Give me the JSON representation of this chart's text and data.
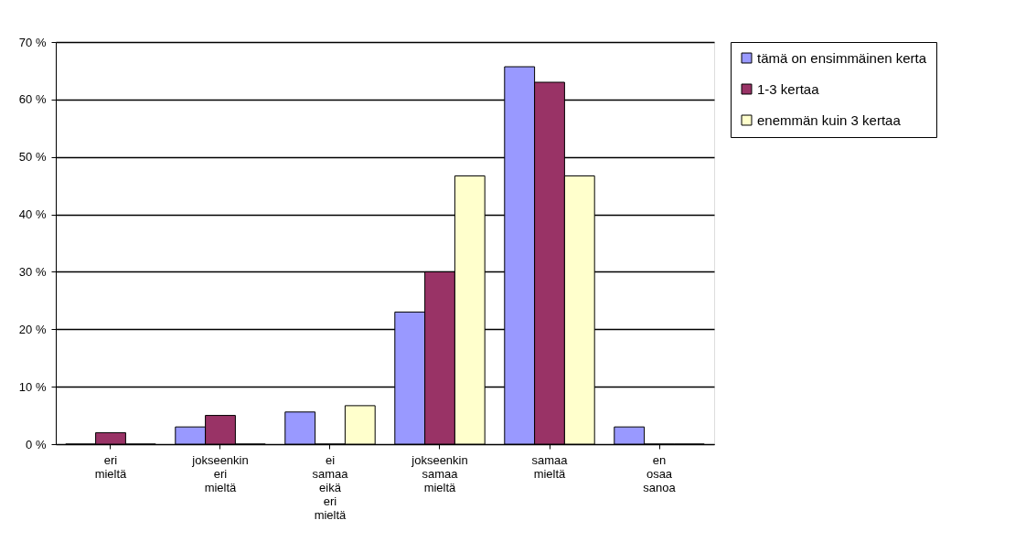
{
  "chart_data": {
    "type": "bar",
    "categories": [
      "eri mieltä",
      "jokseenkin eri mieltä",
      "ei samaa eikä eri mieltä",
      "jokseenkin samaa mieltä",
      "samaa mieltä",
      "en osaa sanoa"
    ],
    "series": [
      {
        "name": "tämä on ensimmäinen kerta",
        "color": "#9999ff",
        "values": [
          0,
          3,
          5.6,
          23,
          65.7,
          3
        ]
      },
      {
        "name": "1-3 kertaa",
        "color": "#993366",
        "values": [
          2,
          5,
          0,
          30,
          63,
          0
        ]
      },
      {
        "name": "enemmän kuin 3 kertaa",
        "color": "#ffffcc",
        "values": [
          0,
          0,
          6.7,
          46.7,
          46.7,
          0
        ]
      }
    ],
    "ylim": [
      0,
      70
    ],
    "yticks": [
      {
        "value": 0,
        "label": "0 %"
      },
      {
        "value": 10,
        "label": "10 %"
      },
      {
        "value": 20,
        "label": "20 %"
      },
      {
        "value": 30,
        "label": "30 %"
      },
      {
        "value": 40,
        "label": "40 %"
      },
      {
        "value": 50,
        "label": "50 %"
      },
      {
        "value": 60,
        "label": "60 %"
      },
      {
        "value": 70,
        "label": "70 %"
      }
    ],
    "grid": "y",
    "legend": "right"
  }
}
